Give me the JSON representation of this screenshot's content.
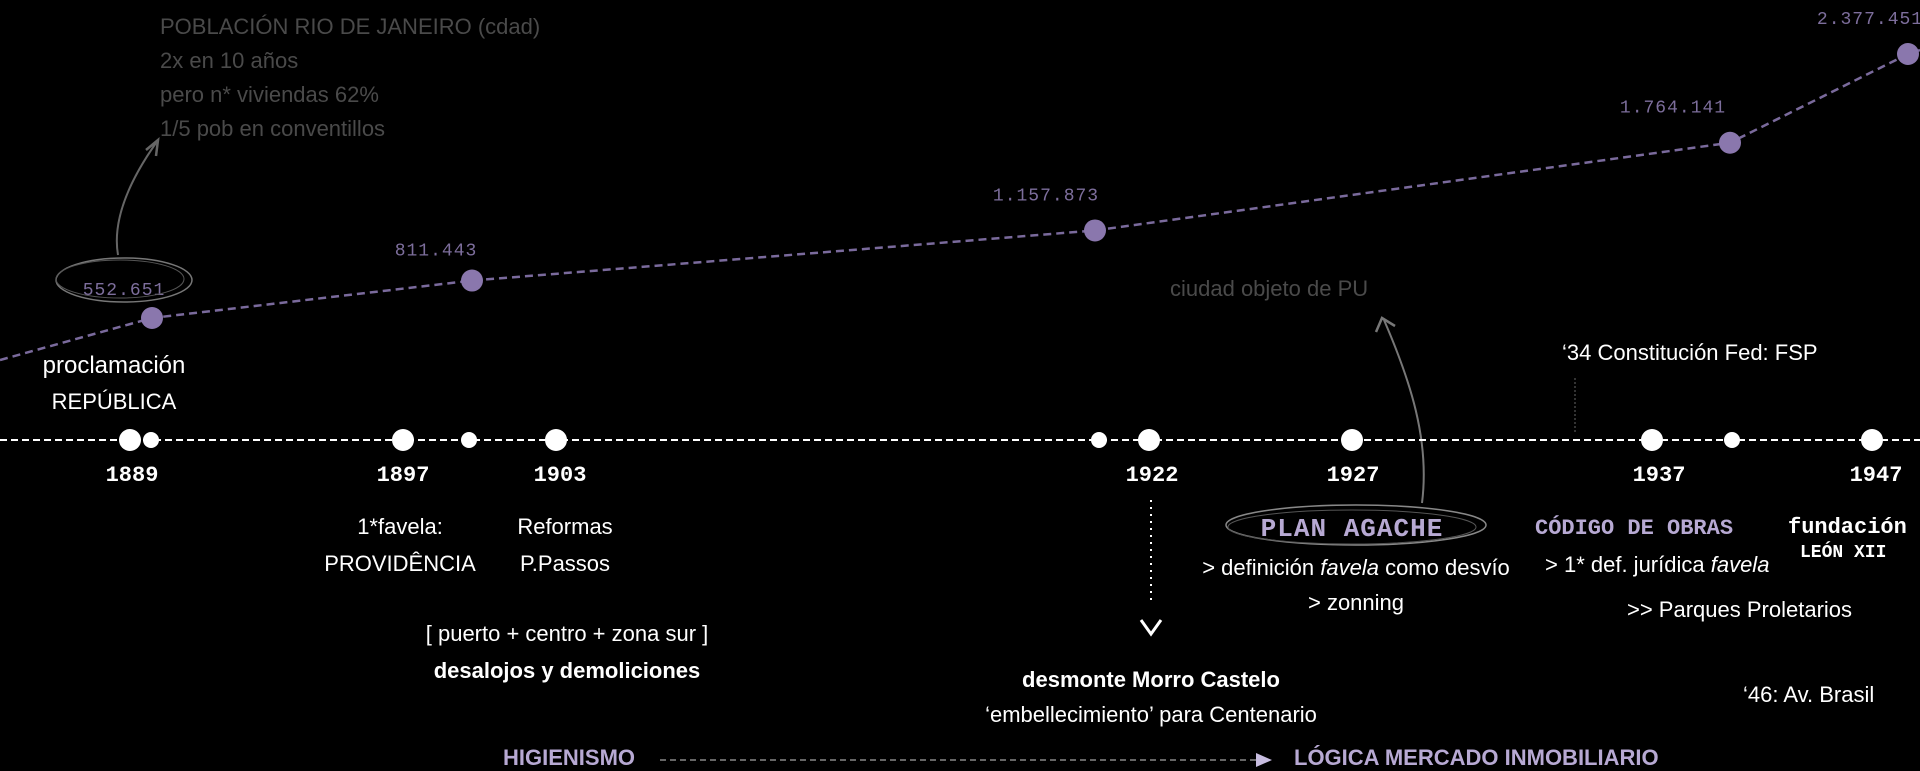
{
  "colors": {
    "background": "#000000",
    "line": "#7a6a9c",
    "dot": "#8a77ad",
    "label": "#7d6e9c",
    "muted": "#4a4a4a",
    "accent": "#b7a9d3"
  },
  "note_top": [
    "POBLACIÓN RIO DE JANEIRO (cdad)",
    "2x en 10 años",
    "pero n* viviendas 62%",
    "1/5 pob en conventillos"
  ],
  "note_pu": "ciudad objeto de PU",
  "chart_data": {
    "type": "line",
    "title": "",
    "x": [
      1889,
      1897,
      1922,
      1937,
      1947
    ],
    "series": [
      {
        "values": [
          552651,
          811443,
          1157873,
          1764141,
          2377451
        ]
      }
    ],
    "data_labels": [
      "552.651",
      "811.443",
      "1.157.873",
      "1.764.141",
      "2.377.451"
    ]
  },
  "timeline": {
    "years": [
      "1889",
      "1897",
      "1903",
      "1922",
      "1927",
      "1937",
      "1947"
    ]
  },
  "events": {
    "republica_line1": "proclamación",
    "republica_line2": "REPÚBLICA",
    "constitucion": "‘34 Constitución Fed: FSP",
    "favela_line1": "1*favela:",
    "favela_line2": "PROVIDÊNCIA",
    "reformas_line1": "Reformas",
    "reformas_line2": "P.Passos",
    "puerto": "[ puerto + centro + zona sur ]",
    "desalojos": "desalojos y demoliciones",
    "agache_title": "PLAN AGACHE",
    "agache_l1_a": "> definición ",
    "agache_l1_b": "favela",
    "agache_l1_c": " como desvío",
    "agache_l2": "> zonning",
    "codigo_title": "CÓDIGO DE OBRAS",
    "codigo_l1_a": "> 1* def. jurídica ",
    "codigo_l1_b": "favela",
    "parques": ">> Parques Proletarios",
    "fundacion_l1": "fundación",
    "fundacion_l2": "LEÓN XII",
    "morro_title": "desmonte Morro Castelo",
    "morro_sub": "‘embellecimiento’ para Centenario",
    "brasil": "‘46: Av. Brasil"
  },
  "footer": {
    "left": "HIGIENISMO",
    "right": "LÓGICA MERCADO INMOBILIARIO"
  }
}
